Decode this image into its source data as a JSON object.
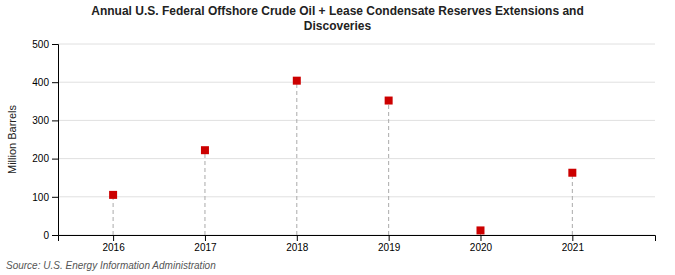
{
  "chart_data": {
    "type": "scatter",
    "title": [
      "Annual U.S. Federal Offshore Crude Oil + Lease Condensate Reserves Extensions and",
      "Discoveries"
    ],
    "y_label": "Million Barrels",
    "annotations": [
      "Source: U.S. Energy Information Administration"
    ],
    "x": [
      2016,
      2017,
      2018,
      2019,
      2020,
      2021
    ],
    "values": [
      105,
      222,
      404,
      352,
      12,
      163
    ],
    "xlim": [
      2015.4,
      2021.9
    ],
    "xticks": [
      2016,
      2017,
      2018,
      2019,
      2020,
      2021
    ],
    "ylim": [
      0,
      500
    ],
    "yticks": [
      0,
      100,
      200,
      300,
      400,
      500
    ],
    "color": "#cc0000",
    "marker": "square",
    "line_style": "dashed",
    "grid": true
  }
}
